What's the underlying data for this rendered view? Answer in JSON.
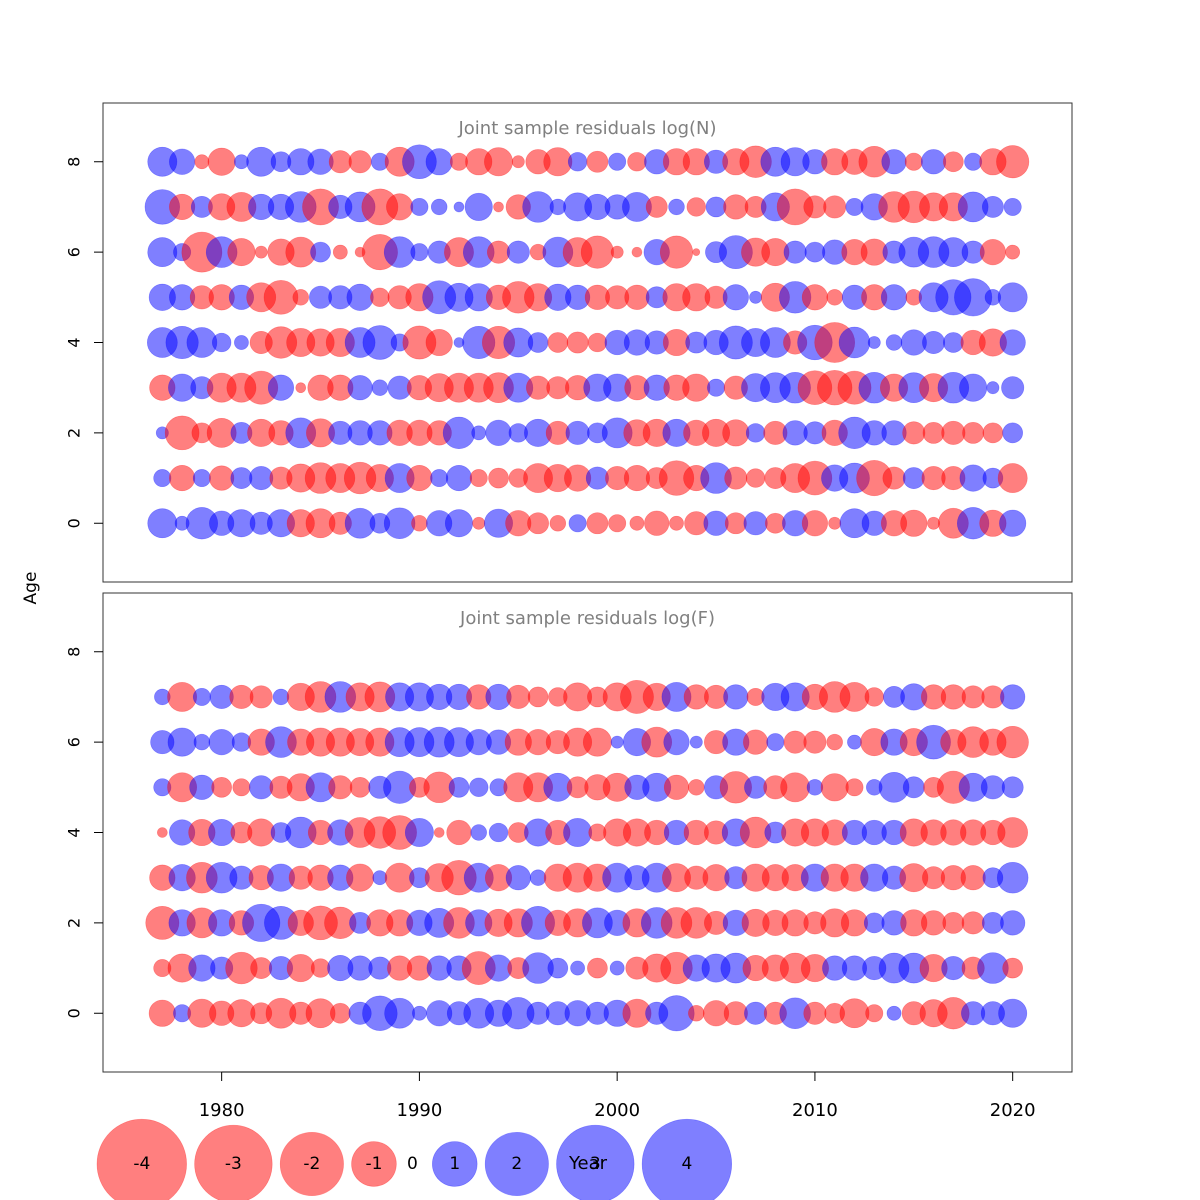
{
  "colors": {
    "positive": "#0000ff",
    "negative": "#ff0000",
    "panel_title": "#808080",
    "axis": "#000000"
  },
  "chart_data": {
    "type": "scatter",
    "subtype": "bubble",
    "xlabel": "Year",
    "ylabel": "Age",
    "xlim": [
      1974,
      2023
    ],
    "ylim": [
      -1.3,
      9.3
    ],
    "xticks": [
      1980,
      1990,
      2000,
      2010,
      2020
    ],
    "yticks": [
      0,
      2,
      4,
      6,
      8
    ],
    "legend": {
      "position": "bottom-left",
      "values": [
        -4,
        -3,
        -2,
        -1,
        0,
        1,
        2,
        3,
        4
      ],
      "labels": [
        "-4",
        "-3",
        "-2",
        "-1",
        "0",
        "1",
        "2",
        "3",
        "4"
      ]
    },
    "x_years": [
      1977,
      1978,
      1979,
      1980,
      1981,
      1982,
      1983,
      1984,
      1985,
      1986,
      1987,
      1988,
      1989,
      1990,
      1991,
      1992,
      1993,
      1994,
      1995,
      1996,
      1997,
      1998,
      1999,
      2000,
      2001,
      2002,
      2003,
      2004,
      2005,
      2006,
      2007,
      2008,
      2009,
      2010,
      2011,
      2012,
      2013,
      2014,
      2015,
      2016,
      2017,
      2018,
      2019,
      2020
    ],
    "panels": [
      {
        "title": "Joint sample residuals log(N)",
        "ages": [
          0,
          1,
          2,
          3,
          4,
          5,
          6,
          7,
          8
        ],
        "residuals": [
          [
            1.7,
            0.4,
            2.0,
            1.2,
            1.5,
            1.0,
            1.5,
            -1.5,
            -1.7,
            -1.0,
            1.8,
            0.8,
            1.9,
            -0.5,
            1.3,
            1.5,
            -0.3,
            1.6,
            -1.3,
            -0.9,
            -0.5,
            0.6,
            -0.9,
            -0.6,
            -0.4,
            -1.2,
            -0.4,
            -1.1,
            1.2,
            -0.9,
            1.1,
            -0.8,
            1.3,
            -1.3,
            -0.3,
            1.7,
            1.2,
            -1.3,
            -1.4,
            -0.3,
            -1.8,
            2.0,
            -1.4,
            1.4
          ],
          [
            0.6,
            -1.3,
            0.6,
            -1.2,
            0.9,
            1.1,
            -1.0,
            -1.6,
            -1.9,
            -1.7,
            -2.0,
            -1.5,
            1.7,
            -1.3,
            0.6,
            1.3,
            -0.6,
            -0.8,
            -0.7,
            -1.7,
            -1.5,
            -1.4,
            1.0,
            -1.1,
            -1.3,
            -0.9,
            -2.4,
            -1.3,
            1.9,
            -1.0,
            -0.7,
            -0.9,
            -1.7,
            -2.3,
            1.4,
            1.8,
            -2.5,
            -1.0,
            0.9,
            -1.1,
            -1.1,
            1.4,
            0.8,
            -1.7
          ],
          [
            0.3,
            -2.3,
            -0.8,
            -1.7,
            0.9,
            -1.5,
            -1.2,
            1.8,
            -1.6,
            1.1,
            1.2,
            1.2,
            -1.3,
            -1.3,
            -1.2,
            2.0,
            0.4,
            1.3,
            0.7,
            1.5,
            -1.1,
            1.1,
            0.8,
            1.8,
            -1.4,
            -1.5,
            1.5,
            -1.3,
            -1.5,
            -1.4,
            0.7,
            -1.1,
            1.2,
            1.0,
            -1.3,
            2.0,
            1.2,
            1.2,
            -1.0,
            -0.9,
            -1.1,
            -0.9,
            -0.8,
            0.8
          ],
          [
            -1.3,
            1.5,
            1.0,
            -1.7,
            -1.7,
            -2.2,
            1.3,
            -0.2,
            -1.3,
            -1.3,
            1.2,
            0.5,
            1.1,
            -1.2,
            -1.6,
            -1.7,
            -1.7,
            -1.8,
            1.7,
            -1.1,
            -1.0,
            -1.2,
            1.5,
            1.5,
            -1.2,
            1.3,
            -1.3,
            -1.5,
            0.6,
            -1.1,
            1.6,
            1.8,
            1.9,
            -2.3,
            -2.4,
            -2.2,
            1.9,
            -1.5,
            1.8,
            -1.6,
            1.9,
            1.5,
            0.3,
            1.0
          ],
          [
            1.8,
            2.1,
            1.8,
            0.7,
            0.4,
            -1.0,
            -2.0,
            -1.6,
            -1.5,
            -1.6,
            1.8,
            2.3,
            0.6,
            -2.2,
            -1.4,
            0.2,
            2.1,
            -2.1,
            1.7,
            0.8,
            -0.8,
            -0.9,
            -0.7,
            1.2,
            1.3,
            1.1,
            -1.4,
            0.9,
            1.2,
            2.2,
            1.6,
            1.8,
            -1.1,
            2.4,
            -3.2,
            1.9,
            0.3,
            0.5,
            1.3,
            1.0,
            0.8,
            -1.2,
            -1.5,
            1.3
          ],
          [
            1.4,
            1.3,
            -1.1,
            -1.3,
            1.2,
            -1.7,
            -2.3,
            -0.5,
            1.0,
            1.1,
            1.4,
            -0.7,
            -1.1,
            -1.5,
            2.2,
            1.6,
            1.5,
            -1.2,
            -2.0,
            -1.5,
            1.4,
            1.2,
            -1.2,
            -1.1,
            -1.2,
            0.9,
            -1.5,
            -1.5,
            -1.0,
            1.3,
            0.3,
            -1.6,
            2.0,
            -1.3,
            -0.5,
            1.2,
            -1.3,
            1.3,
            -0.5,
            1.7,
            2.5,
            2.8,
            0.5,
            1.7
          ],
          [
            1.7,
            0.6,
            -3.2,
            1.9,
            -1.5,
            -0.3,
            -1.4,
            -1.8,
            0.8,
            -0.4,
            -0.2,
            -2.5,
            1.9,
            0.6,
            1.0,
            -1.7,
            1.9,
            -1.0,
            1.0,
            -0.5,
            1.8,
            -1.7,
            -2.1,
            -0.3,
            -0.2,
            1.3,
            -2.1,
            -0.1,
            0.9,
            2.2,
            -1.6,
            -1.5,
            1.0,
            0.8,
            1.2,
            -1.3,
            -1.4,
            1.0,
            1.8,
            1.9,
            1.7,
            1.0,
            -1.3,
            -0.4
          ],
          [
            2.4,
            -1.3,
            0.9,
            -1.4,
            -1.7,
            1.3,
            1.3,
            1.9,
            -2.6,
            1.1,
            1.8,
            -2.6,
            -1.4,
            0.6,
            0.5,
            0.2,
            1.5,
            -0.2,
            -1.2,
            1.9,
            0.5,
            1.6,
            1.3,
            1.2,
            1.7,
            -0.9,
            0.5,
            -0.7,
            0.8,
            -1.2,
            -0.9,
            1.6,
            -2.6,
            -1.0,
            -1.0,
            0.6,
            1.4,
            -1.9,
            -2.0,
            -1.6,
            -1.6,
            1.8,
            0.9,
            0.6
          ],
          [
            1.7,
            1.3,
            -0.4,
            -1.5,
            0.4,
            1.7,
            0.8,
            1.4,
            1.3,
            -1.0,
            -1.0,
            0.6,
            -1.7,
            2.3,
            1.4,
            -0.6,
            -1.4,
            -1.6,
            -0.3,
            -1.2,
            -1.6,
            0.7,
            -0.9,
            0.6,
            -0.7,
            1.2,
            -1.4,
            -1.4,
            1.1,
            -1.4,
            -2.0,
            1.7,
            1.6,
            1.2,
            -1.4,
            -1.3,
            -1.9,
            1.2,
            -0.6,
            1.2,
            -0.8,
            0.6,
            -1.4,
            -2.1
          ]
        ]
      },
      {
        "title": "Joint sample residuals log(F)",
        "ages": [
          0,
          1,
          2,
          3,
          4,
          5,
          6,
          7
        ],
        "residuals": [
          [
            -1.4,
            0.6,
            -1.6,
            -1.2,
            -1.5,
            -0.9,
            -1.8,
            -1.0,
            -1.7,
            -0.8,
            1.0,
            2.4,
            1.8,
            0.4,
            1.3,
            1.1,
            1.8,
            1.4,
            2.0,
            1.0,
            1.1,
            1.3,
            1.0,
            1.4,
            -1.6,
            1.0,
            2.5,
            -0.5,
            -1.3,
            -1.1,
            1.0,
            -1.0,
            1.9,
            -1.0,
            -0.8,
            -1.7,
            -0.6,
            0.4,
            -1.1,
            -1.5,
            -2.0,
            1.1,
            1.1,
            1.6
          ],
          [
            -0.6,
            -1.6,
            1.4,
            1.0,
            -2.0,
            -0.9,
            1.1,
            -1.5,
            -0.7,
            1.3,
            1.2,
            1.0,
            -1.2,
            -1.2,
            1.2,
            1.2,
            -2.2,
            1.4,
            -0.9,
            1.9,
            0.8,
            0.4,
            -0.8,
            0.4,
            -1.0,
            -1.6,
            -2.0,
            1.4,
            1.6,
            1.8,
            -1.3,
            -1.4,
            -1.8,
            -1.5,
            1.2,
            1.2,
            1.1,
            1.8,
            1.8,
            -1.5,
            1.1,
            -1.0,
            1.9,
            -0.8
          ],
          [
            -2.2,
            1.4,
            -1.8,
            1.4,
            -1.2,
            2.8,
            2.2,
            -1.3,
            -2.3,
            -2.0,
            0.9,
            -1.4,
            -1.4,
            1.3,
            1.7,
            -1.9,
            1.4,
            -1.5,
            -1.6,
            2.2,
            -1.3,
            -1.6,
            1.8,
            1.3,
            -1.6,
            1.9,
            -1.9,
            -1.9,
            -1.1,
            1.3,
            -1.5,
            -1.3,
            -1.4,
            -1.0,
            -1.6,
            -1.4,
            0.8,
            1.2,
            -1.4,
            -1.2,
            -0.9,
            -1.0,
            0.9,
            1.2
          ],
          [
            -1.3,
            1.4,
            -1.9,
            1.9,
            1.1,
            -1.2,
            1.5,
            -1.1,
            -1.3,
            1.3,
            -1.5,
            0.4,
            -1.7,
            0.8,
            -1.6,
            -2.4,
            1.7,
            -1.4,
            1.2,
            0.5,
            -1.5,
            -1.7,
            -1.5,
            1.7,
            1.2,
            1.7,
            -1.6,
            -1.1,
            -1.4,
            1.0,
            -1.5,
            -1.4,
            -1.4,
            1.5,
            -1.5,
            -1.5,
            1.5,
            1.1,
            -1.6,
            -1.0,
            -1.2,
            -1.2,
            0.8,
            1.9
          ],
          [
            -0.2,
            1.3,
            -1.4,
            1.4,
            -0.9,
            -1.5,
            0.8,
            1.9,
            -1.2,
            1.3,
            -1.8,
            -2.0,
            -2.3,
            1.6,
            -0.2,
            -1.2,
            0.5,
            0.7,
            -0.8,
            1.5,
            -1.2,
            1.6,
            -0.6,
            -1.5,
            -1.5,
            -1.2,
            1.2,
            -1.2,
            -1.1,
            1.5,
            -1.9,
            0.9,
            -1.5,
            -1.5,
            -1.3,
            1.2,
            1.2,
            1.2,
            -1.5,
            -1.3,
            -1.3,
            -1.3,
            -1.2,
            -1.8
          ],
          [
            0.6,
            -1.7,
            1.2,
            -0.8,
            -0.6,
            1.1,
            -1.0,
            -1.5,
            1.7,
            -1.1,
            -0.8,
            1.0,
            2.1,
            -0.8,
            -1.9,
            0.8,
            0.7,
            0.6,
            -1.7,
            -1.7,
            1.6,
            -0.9,
            -1.3,
            -1.6,
            1.2,
            1.6,
            -1.2,
            -0.5,
            1.1,
            -2.0,
            1.0,
            -1.1,
            -1.7,
            0.5,
            -1.5,
            -0.6,
            0.5,
            1.8,
            0.9,
            -0.8,
            -2.1,
            1.6,
            1.1,
            0.9
          ],
          [
            1.1,
            1.6,
            0.5,
            1.3,
            0.7,
            -1.4,
            1.9,
            -1.4,
            -1.6,
            -1.6,
            -1.5,
            -1.6,
            1.7,
            1.7,
            1.8,
            1.7,
            1.3,
            1.2,
            -1.4,
            -1.3,
            -1.1,
            -1.6,
            -1.6,
            0.3,
            1.5,
            -1.8,
            1.3,
            0.3,
            -1.1,
            1.4,
            -1.2,
            0.6,
            -1.0,
            -1.0,
            -0.5,
            0.4,
            -1.5,
            1.4,
            -1.5,
            2.3,
            -1.3,
            -1.9,
            -1.4,
            -2.0
          ],
          [
            0.5,
            -1.7,
            0.6,
            1.1,
            -1.1,
            -1.0,
            0.5,
            -1.5,
            -1.9,
            1.9,
            -1.6,
            -1.8,
            1.6,
            1.6,
            1.3,
            1.3,
            -1.2,
            1.3,
            -1.1,
            -0.8,
            -0.7,
            -1.6,
            -0.8,
            -1.6,
            -2.2,
            -1.5,
            1.7,
            -1.2,
            -1.1,
            1.2,
            -0.6,
            1.5,
            1.6,
            -1.3,
            -1.9,
            -1.7,
            -0.7,
            0.9,
            1.4,
            -1.2,
            -1.2,
            -1.0,
            -1.0,
            1.2
          ]
        ]
      }
    ]
  }
}
